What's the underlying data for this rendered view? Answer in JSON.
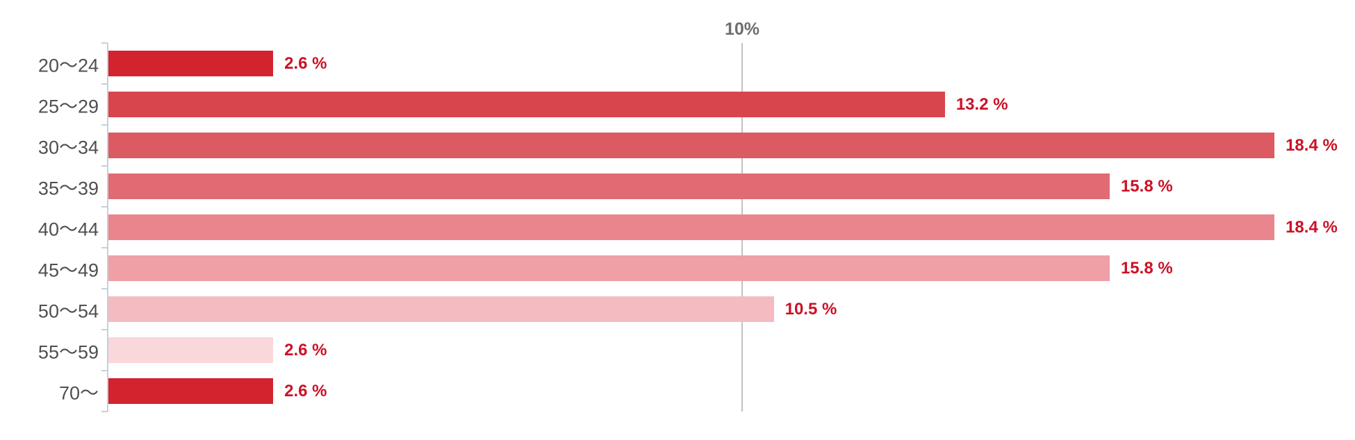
{
  "chart_data": {
    "type": "bar",
    "orientation": "horizontal",
    "title": "",
    "categories": [
      "20〜24",
      "25〜29",
      "30〜34",
      "35〜39",
      "40〜44",
      "45〜49",
      "50〜54",
      "55〜59",
      "70〜"
    ],
    "values": [
      2.6,
      13.2,
      18.4,
      15.8,
      18.4,
      15.8,
      10.5,
      2.6,
      2.6
    ],
    "value_labels": [
      "2.6 %",
      "13.2 %",
      "18.4 %",
      "15.8 %",
      "18.4 %",
      "15.8 %",
      "10.5 %",
      "2.6 %",
      "2.6 %"
    ],
    "bar_colors": [
      "#d2232e",
      "#d8454d",
      "#dc5a61",
      "#e16b73",
      "#e9868d",
      "#efa0a6",
      "#f4bcc1",
      "#f9d7da",
      "#d2232e"
    ],
    "xlim": [
      0,
      19.7
    ],
    "grid_on": true,
    "gridline": {
      "percent": 10,
      "label": "10%"
    },
    "legend": "none",
    "colors": {
      "axis": "#c3d1da",
      "gridline": "#c2c2c2",
      "category_label": "#4f4f4f",
      "value_label": "#cb1126",
      "grid_label": "#6e6e6e",
      "background": "#ffffff"
    }
  }
}
